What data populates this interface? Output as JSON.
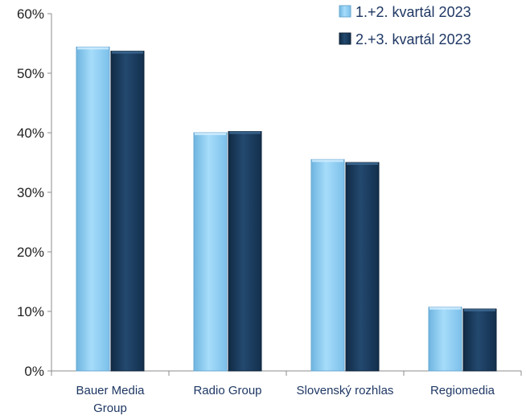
{
  "chart_data": {
    "type": "bar",
    "categories": [
      "Bauer Media Group",
      "Radio Group",
      "Slovenský rozhlas",
      "Regiomedia"
    ],
    "category_lines": [
      [
        "Bauer Media",
        "Group"
      ],
      [
        "Radio Group"
      ],
      [
        "Slovenský rozhlas"
      ],
      [
        "Regiomedia"
      ]
    ],
    "series": [
      {
        "name": "1.+2. kvartál 2023",
        "values": [
          54.4,
          40.0,
          35.5,
          10.7
        ],
        "color": "#8fcff5"
      },
      {
        "name": "2.+3. kvartál 2023",
        "values": [
          53.7,
          40.2,
          35.0,
          10.4
        ],
        "color": "#1a3a5c"
      }
    ],
    "ylim": [
      0,
      60
    ],
    "yticks": [
      "0%",
      "10%",
      "20%",
      "30%",
      "40%",
      "50%",
      "60%"
    ],
    "title": "",
    "xlabel": "",
    "ylabel": "",
    "grid": false,
    "legend_position": "top-right"
  }
}
